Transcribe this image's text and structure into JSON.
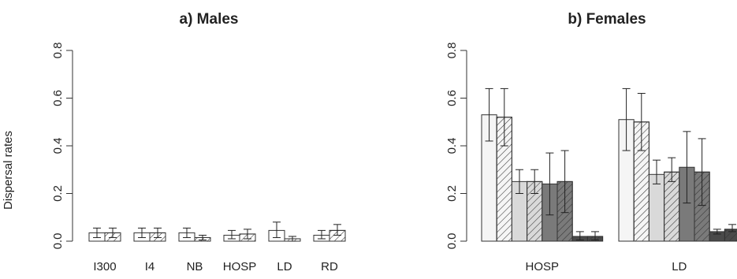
{
  "chart_data": [
    {
      "type": "bar",
      "title": "a) Males",
      "ylabel": "Dispersal rates",
      "xlabel": "",
      "ylim": [
        0,
        0.8
      ],
      "yticks": [
        "0.0",
        "0.2",
        "0.4",
        "0.6",
        "0.8"
      ],
      "categories": [
        "I300",
        "I4",
        "NB",
        "HOSP",
        "LD",
        "RD"
      ],
      "bar_style": [
        "open",
        "hatched"
      ],
      "series": [
        {
          "values": [
            0.035,
            0.035,
            0.035,
            0.025,
            0.045,
            0.025
          ],
          "err_low": [
            0.015,
            0.015,
            0.015,
            0.01,
            0.015,
            0.01
          ],
          "err_high": [
            0.055,
            0.055,
            0.055,
            0.045,
            0.08,
            0.045
          ]
        },
        {
          "values": [
            0.035,
            0.035,
            0.015,
            0.03,
            0.01,
            0.045
          ],
          "err_low": [
            0.015,
            0.015,
            0.005,
            0.01,
            0.0,
            0.025
          ],
          "err_high": [
            0.055,
            0.055,
            0.025,
            0.05,
            0.02,
            0.07
          ]
        }
      ],
      "grid": false
    },
    {
      "type": "bar",
      "title": "b) Females",
      "ylabel": "",
      "xlabel": "",
      "ylim": [
        0,
        0.8
      ],
      "yticks": [
        "0.0",
        "0.2",
        "0.4",
        "0.6",
        "0.8"
      ],
      "categories": [
        "HOSP",
        "LD"
      ],
      "bars_per_category": 8,
      "fills": [
        "#f5f5f5",
        "#f5f5f5",
        "#d9d9d9",
        "#d9d9d9",
        "#7a7a7a",
        "#7a7a7a",
        "#4a4a4a",
        "#4a4a4a"
      ],
      "hatched": [
        false,
        true,
        false,
        true,
        false,
        true,
        false,
        true
      ],
      "values": [
        [
          0.53,
          0.52,
          0.25,
          0.25,
          0.24,
          0.25,
          0.02,
          0.02
        ],
        [
          0.51,
          0.5,
          0.28,
          0.29,
          0.31,
          0.29,
          0.04,
          0.05
        ]
      ],
      "err_low": [
        [
          0.42,
          0.4,
          0.2,
          0.2,
          0.11,
          0.12,
          0.005,
          0.005
        ],
        [
          0.38,
          0.38,
          0.24,
          0.25,
          0.16,
          0.15,
          0.03,
          0.04
        ]
      ],
      "err_high": [
        [
          0.64,
          0.64,
          0.3,
          0.3,
          0.37,
          0.38,
          0.04,
          0.04
        ],
        [
          0.64,
          0.62,
          0.34,
          0.35,
          0.46,
          0.43,
          0.05,
          0.07
        ]
      ],
      "grid": false
    }
  ]
}
